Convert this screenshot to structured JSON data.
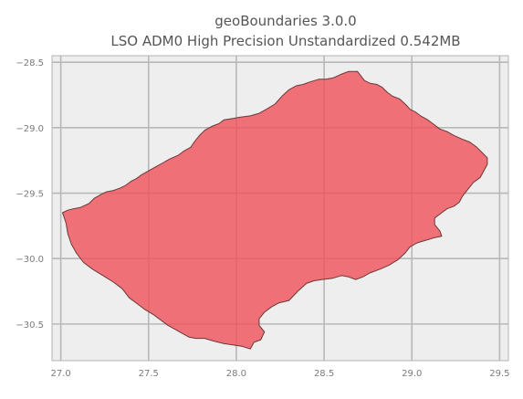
{
  "figure": {
    "title_line_1": "geoBoundaries 3.0.0",
    "title_line_2": "LSO ADM0 High Precision Unstandardized 0.542MB"
  },
  "map": {
    "country": "LSO",
    "fill_color": "#f0505a",
    "edge_color": "#6b3838",
    "background_color": "#eeeeee",
    "grid_color": "#b8b8b8",
    "grid": true,
    "x_ticks": [
      "27.0",
      "27.5",
      "28.0",
      "28.5",
      "29.0",
      "29.5"
    ],
    "y_ticks": [
      "−28.5",
      "−29.0",
      "−29.5",
      "−30.0",
      "−30.5"
    ]
  },
  "chart_data": {
    "type": "map",
    "title": "geoBoundaries 3.0.0\nLSO ADM0 High Precision Unstandardized 0.542MB",
    "xlim": [
      26.95,
      29.55
    ],
    "ylim": [
      -30.78,
      -28.45
    ],
    "grid": true,
    "x_ticks": [
      27.0,
      27.5,
      28.0,
      28.5,
      29.0,
      29.5
    ],
    "y_ticks": [
      -28.5,
      -29.0,
      -29.5,
      -30.0,
      -30.5
    ],
    "boundary_lonlat": [
      [
        27.01,
        -29.65
      ],
      [
        27.04,
        -29.63
      ],
      [
        27.07,
        -29.62
      ],
      [
        27.11,
        -29.61
      ],
      [
        27.16,
        -29.58
      ],
      [
        27.19,
        -29.54
      ],
      [
        27.23,
        -29.51
      ],
      [
        27.26,
        -29.49
      ],
      [
        27.3,
        -29.48
      ],
      [
        27.34,
        -29.46
      ],
      [
        27.37,
        -29.44
      ],
      [
        27.4,
        -29.41
      ],
      [
        27.43,
        -29.39
      ],
      [
        27.46,
        -29.36
      ],
      [
        27.5,
        -29.33
      ],
      [
        27.54,
        -29.3
      ],
      [
        27.58,
        -29.27
      ],
      [
        27.62,
        -29.24
      ],
      [
        27.67,
        -29.21
      ],
      [
        27.7,
        -29.18
      ],
      [
        27.74,
        -29.15
      ],
      [
        27.76,
        -29.11
      ],
      [
        27.79,
        -29.06
      ],
      [
        27.82,
        -29.02
      ],
      [
        27.86,
        -28.99
      ],
      [
        27.9,
        -28.97
      ],
      [
        27.93,
        -28.94
      ],
      [
        27.98,
        -28.93
      ],
      [
        28.02,
        -28.92
      ],
      [
        28.08,
        -28.91
      ],
      [
        28.13,
        -28.89
      ],
      [
        28.17,
        -28.86
      ],
      [
        28.22,
        -28.82
      ],
      [
        28.26,
        -28.76
      ],
      [
        28.3,
        -28.71
      ],
      [
        28.34,
        -28.68
      ],
      [
        28.38,
        -28.67
      ],
      [
        28.42,
        -28.65
      ],
      [
        28.47,
        -28.63
      ],
      [
        28.51,
        -28.63
      ],
      [
        28.55,
        -28.62
      ],
      [
        28.6,
        -28.59
      ],
      [
        28.64,
        -28.57
      ],
      [
        28.69,
        -28.57
      ],
      [
        28.73,
        -28.64
      ],
      [
        28.76,
        -28.66
      ],
      [
        28.8,
        -28.67
      ],
      [
        28.83,
        -28.69
      ],
      [
        28.86,
        -28.73
      ],
      [
        28.89,
        -28.76
      ],
      [
        28.93,
        -28.78
      ],
      [
        28.97,
        -28.83
      ],
      [
        28.99,
        -28.86
      ],
      [
        29.02,
        -28.88
      ],
      [
        29.05,
        -28.91
      ],
      [
        29.09,
        -28.94
      ],
      [
        29.12,
        -28.97
      ],
      [
        29.16,
        -29.01
      ],
      [
        29.2,
        -29.03
      ],
      [
        29.24,
        -29.06
      ],
      [
        29.29,
        -29.09
      ],
      [
        29.33,
        -29.11
      ],
      [
        29.37,
        -29.15
      ],
      [
        29.4,
        -29.19
      ],
      [
        29.43,
        -29.23
      ],
      [
        29.43,
        -29.28
      ],
      [
        29.41,
        -29.33
      ],
      [
        29.39,
        -29.38
      ],
      [
        29.35,
        -29.42
      ],
      [
        29.32,
        -29.47
      ],
      [
        29.29,
        -29.52
      ],
      [
        29.27,
        -29.57
      ],
      [
        29.24,
        -29.6
      ],
      [
        29.2,
        -29.62
      ],
      [
        29.17,
        -29.65
      ],
      [
        29.13,
        -29.69
      ],
      [
        29.13,
        -29.74
      ],
      [
        29.16,
        -29.79
      ],
      [
        29.17,
        -29.83
      ],
      [
        29.13,
        -29.84
      ],
      [
        29.08,
        -29.86
      ],
      [
        29.03,
        -29.88
      ],
      [
        28.99,
        -29.91
      ],
      [
        28.96,
        -29.96
      ],
      [
        28.92,
        -30.01
      ],
      [
        28.87,
        -30.05
      ],
      [
        28.82,
        -30.08
      ],
      [
        28.76,
        -30.11
      ],
      [
        28.72,
        -30.14
      ],
      [
        28.68,
        -30.16
      ],
      [
        28.64,
        -30.14
      ],
      [
        28.6,
        -30.13
      ],
      [
        28.55,
        -30.15
      ],
      [
        28.49,
        -30.16
      ],
      [
        28.44,
        -30.17
      ],
      [
        28.4,
        -30.19
      ],
      [
        28.35,
        -30.25
      ],
      [
        28.3,
        -30.32
      ],
      [
        28.24,
        -30.34
      ],
      [
        28.2,
        -30.37
      ],
      [
        28.16,
        -30.41
      ],
      [
        28.13,
        -30.46
      ],
      [
        28.13,
        -30.51
      ],
      [
        28.16,
        -30.56
      ],
      [
        28.14,
        -30.62
      ],
      [
        28.1,
        -30.64
      ],
      [
        28.08,
        -30.69
      ],
      [
        28.03,
        -30.67
      ],
      [
        27.98,
        -30.66
      ],
      [
        27.93,
        -30.65
      ],
      [
        27.87,
        -30.63
      ],
      [
        27.82,
        -30.61
      ],
      [
        27.77,
        -30.61
      ],
      [
        27.73,
        -30.6
      ],
      [
        27.69,
        -30.57
      ],
      [
        27.65,
        -30.54
      ],
      [
        27.61,
        -30.51
      ],
      [
        27.57,
        -30.47
      ],
      [
        27.53,
        -30.43
      ],
      [
        27.48,
        -30.39
      ],
      [
        27.43,
        -30.34
      ],
      [
        27.39,
        -30.3
      ],
      [
        27.35,
        -30.23
      ],
      [
        27.3,
        -30.18
      ],
      [
        27.24,
        -30.13
      ],
      [
        27.18,
        -30.08
      ],
      [
        27.13,
        -30.03
      ],
      [
        27.09,
        -29.96
      ],
      [
        27.06,
        -29.89
      ],
      [
        27.04,
        -29.81
      ],
      [
        27.03,
        -29.73
      ],
      [
        27.01,
        -29.65
      ]
    ]
  }
}
